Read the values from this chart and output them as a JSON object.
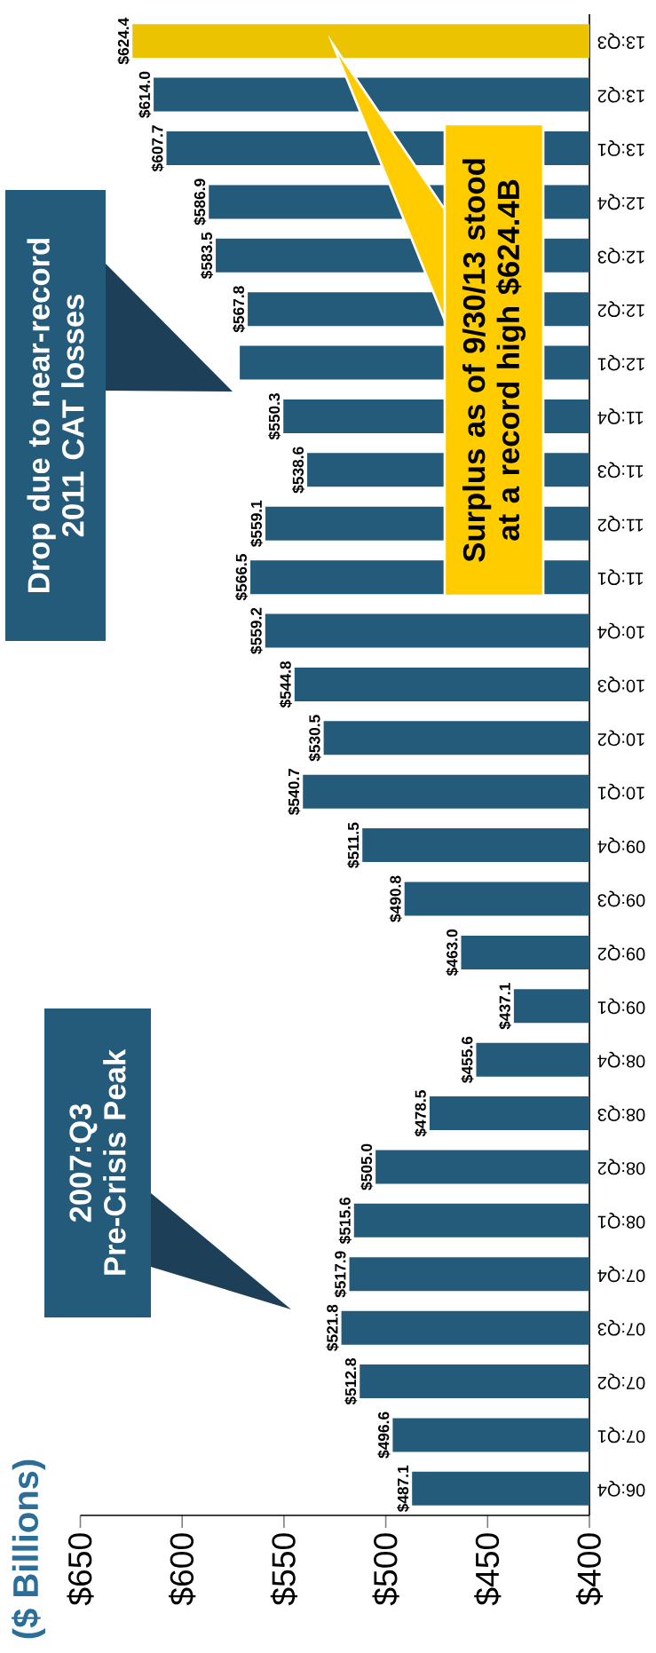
{
  "chart_data": {
    "type": "bar",
    "orientation": "horizontal",
    "categories": [
      "13:Q3",
      "13:Q2",
      "13:Q1",
      "12:Q4",
      "12:Q3",
      "12:Q2",
      "12:Q1",
      "11:Q4",
      "11:Q3",
      "11:Q2",
      "11:Q1",
      "10:Q4",
      "10:Q3",
      "10:Q2",
      "10:Q1",
      "09:Q4",
      "09:Q3",
      "09:Q2",
      "09:Q1",
      "08:Q4",
      "08:Q3",
      "08:Q2",
      "08:Q1",
      "07:Q4",
      "07:Q3",
      "07:Q2",
      "07:Q1",
      "06:Q4"
    ],
    "values": [
      624.4,
      614.0,
      607.7,
      586.9,
      583.5,
      567.8,
      571.7,
      550.3,
      538.6,
      559.1,
      566.5,
      559.2,
      544.8,
      530.5,
      540.7,
      511.5,
      490.8,
      463.0,
      437.1,
      455.6,
      478.5,
      505.0,
      515.6,
      517.9,
      521.8,
      512.8,
      496.6,
      487.1
    ],
    "value_labels": [
      "$624.4",
      "$614.0",
      "$607.7",
      "$586.9",
      "$583.5",
      "$567.8",
      null,
      "$550.3",
      "$538.6",
      "$559.1",
      "$566.5",
      "$559.2",
      "$544.8",
      "$530.5",
      "$540.7",
      "$511.5",
      "$490.8",
      "$463.0",
      "$437.1",
      "$455.6",
      "$478.5",
      "$505.0",
      "$515.6",
      "$517.9",
      "$521.8",
      "$512.8",
      "$496.6",
      "$487.1"
    ],
    "colors": [
      "#ecc300",
      "#245b7b",
      "#245b7b",
      "#245b7b",
      "#245b7b",
      "#245b7b",
      "#245b7b",
      "#245b7b",
      "#245b7b",
      "#245b7b",
      "#245b7b",
      "#245b7b",
      "#245b7b",
      "#245b7b",
      "#245b7b",
      "#245b7b",
      "#245b7b",
      "#245b7b",
      "#245b7b",
      "#245b7b",
      "#245b7b",
      "#245b7b",
      "#245b7b",
      "#245b7b",
      "#245b7b",
      "#245b7b",
      "#245b7b",
      "#245b7b"
    ],
    "xlim": [
      650,
      400
    ],
    "xticks": [
      {
        "value": 650,
        "label": "$650"
      },
      {
        "value": 600,
        "label": "$600"
      },
      {
        "value": 550,
        "label": "$550"
      },
      {
        "value": 500,
        "label": "$500"
      },
      {
        "value": 450,
        "label": "$450"
      },
      {
        "value": 400,
        "label": "$400"
      }
    ],
    "annotations": [
      "($ Billions)",
      "2007:Q3 Pre-Crisis Peak",
      "Drop due to near-record 2011 CAT losses",
      "Surplus as of 9/30/13 stood at a record high $624.4B"
    ]
  }
}
